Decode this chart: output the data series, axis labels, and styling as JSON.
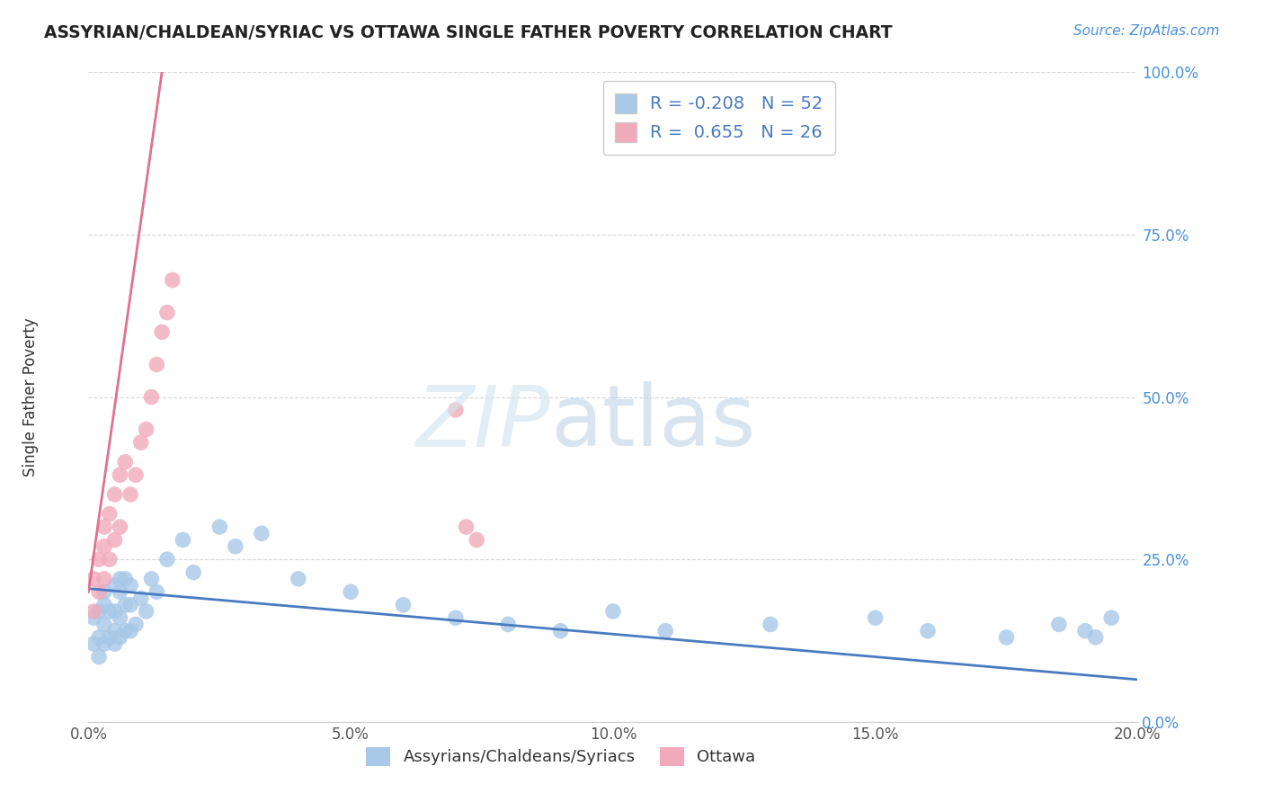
{
  "title": "ASSYRIAN/CHALDEAN/SYRIAC VS OTTAWA SINGLE FATHER POVERTY CORRELATION CHART",
  "source": "Source: ZipAtlas.com",
  "ylabel": "Single Father Poverty",
  "legend_label1": "Assyrians/Chaldeans/Syriacs",
  "legend_label2": "Ottawa",
  "r1": -0.208,
  "n1": 52,
  "r2": 0.655,
  "n2": 26,
  "xlim": [
    0.0,
    0.2
  ],
  "ylim": [
    0.0,
    1.0
  ],
  "xticks": [
    0.0,
    0.05,
    0.1,
    0.15,
    0.2
  ],
  "yticks": [
    0.0,
    0.25,
    0.5,
    0.75,
    1.0
  ],
  "xticklabels": [
    "0.0%",
    "5.0%",
    "10.0%",
    "15.0%",
    "20.0%"
  ],
  "yticklabels": [
    "0.0%",
    "25.0%",
    "50.0%",
    "75.0%",
    "100.0%"
  ],
  "color_blue": "#a8c8e8",
  "color_pink": "#f0aabb",
  "trendline_blue": "#4a7abf",
  "trendline_pink": "#e07090",
  "background_color": "#ffffff",
  "grid_color": "#cccccc",
  "title_color": "#222222",
  "source_color": "#4a90d9",
  "ytick_color": "#4a90d9",
  "xtick_color": "#555555",
  "ylabel_color": "#333333",
  "watermark_zip_color": "#d0e4f0",
  "watermark_atlas_color": "#b8d0e4",
  "blue_x": [
    0.001,
    0.001,
    0.002,
    0.002,
    0.002,
    0.003,
    0.003,
    0.003,
    0.003,
    0.004,
    0.004,
    0.005,
    0.005,
    0.005,
    0.005,
    0.006,
    0.006,
    0.006,
    0.006,
    0.007,
    0.007,
    0.007,
    0.008,
    0.008,
    0.008,
    0.009,
    0.01,
    0.011,
    0.012,
    0.013,
    0.015,
    0.018,
    0.02,
    0.025,
    0.028,
    0.033,
    0.04,
    0.05,
    0.06,
    0.07,
    0.08,
    0.09,
    0.1,
    0.11,
    0.13,
    0.15,
    0.16,
    0.175,
    0.185,
    0.19,
    0.192,
    0.195
  ],
  "blue_y": [
    0.12,
    0.16,
    0.1,
    0.13,
    0.17,
    0.12,
    0.15,
    0.18,
    0.2,
    0.13,
    0.17,
    0.12,
    0.14,
    0.17,
    0.21,
    0.13,
    0.16,
    0.2,
    0.22,
    0.14,
    0.18,
    0.22,
    0.14,
    0.18,
    0.21,
    0.15,
    0.19,
    0.17,
    0.22,
    0.2,
    0.25,
    0.28,
    0.23,
    0.3,
    0.27,
    0.29,
    0.22,
    0.2,
    0.18,
    0.16,
    0.15,
    0.14,
    0.17,
    0.14,
    0.15,
    0.16,
    0.14,
    0.13,
    0.15,
    0.14,
    0.13,
    0.16
  ],
  "pink_x": [
    0.001,
    0.001,
    0.002,
    0.002,
    0.003,
    0.003,
    0.003,
    0.004,
    0.004,
    0.005,
    0.005,
    0.006,
    0.006,
    0.007,
    0.008,
    0.009,
    0.01,
    0.011,
    0.012,
    0.013,
    0.014,
    0.015,
    0.016,
    0.07,
    0.072,
    0.074
  ],
  "pink_y": [
    0.17,
    0.22,
    0.2,
    0.25,
    0.22,
    0.27,
    0.3,
    0.25,
    0.32,
    0.28,
    0.35,
    0.3,
    0.38,
    0.4,
    0.35,
    0.38,
    0.43,
    0.45,
    0.5,
    0.55,
    0.6,
    0.63,
    0.68,
    0.48,
    0.3,
    0.28
  ],
  "pink_trendline_x0": 0.0,
  "pink_trendline_y0": 0.2,
  "pink_trendline_x1": 0.014,
  "pink_trendline_y1": 1.0,
  "blue_trendline_x0": 0.0,
  "blue_trendline_y0": 0.205,
  "blue_trendline_x1": 0.2,
  "blue_trendline_y1": 0.065
}
